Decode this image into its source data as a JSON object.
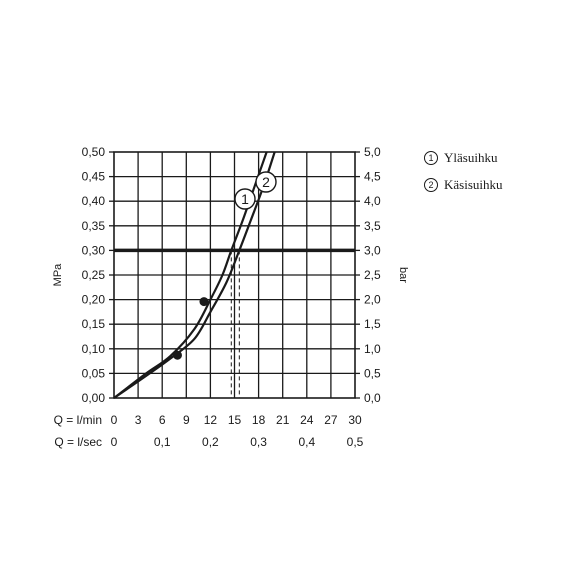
{
  "chart_data": {
    "type": "line",
    "ylabel_left": "MPa",
    "ylabel_right": "bar",
    "ylim": [
      0,
      0.5
    ],
    "xlim_lmin": [
      0,
      30
    ],
    "left_ticks": [
      "0,00",
      "0,05",
      "0,10",
      "0,15",
      "0,20",
      "0,25",
      "0,30",
      "0,35",
      "0,40",
      "0,45",
      "0,50"
    ],
    "right_ticks": [
      "0,0",
      "0,5",
      "1,0",
      "1,5",
      "2,0",
      "2,5",
      "3,0",
      "3,5",
      "4,0",
      "4,5",
      "5,0"
    ],
    "x_row1": {
      "label": "Q = l/min",
      "ticks": [
        {
          "v": 0,
          "t": "0"
        },
        {
          "v": 3,
          "t": "3"
        },
        {
          "v": 6,
          "t": "6"
        },
        {
          "v": 9,
          "t": "9"
        },
        {
          "v": 12,
          "t": "12"
        },
        {
          "v": 15,
          "t": "15"
        },
        {
          "v": 18,
          "t": "18"
        },
        {
          "v": 21,
          "t": "21"
        },
        {
          "v": 24,
          "t": "24"
        },
        {
          "v": 27,
          "t": "27"
        },
        {
          "v": 30,
          "t": "30"
        }
      ]
    },
    "x_row2": {
      "label": "Q = l/sec",
      "ticks": [
        {
          "v": 0,
          "t": "0"
        },
        {
          "v": 6,
          "t": "0,1"
        },
        {
          "v": 12,
          "t": "0,2"
        },
        {
          "v": 18,
          "t": "0,3"
        },
        {
          "v": 24,
          "t": "0,4"
        },
        {
          "v": 30,
          "t": "0,5"
        }
      ]
    },
    "reference_line": {
      "y": 0.3
    },
    "series": [
      {
        "marker": "1",
        "name": "Yläsuihku",
        "points": [
          [
            0,
            0
          ],
          [
            4,
            0.05
          ],
          [
            7,
            0.085
          ],
          [
            10,
            0.14
          ],
          [
            12,
            0.2
          ],
          [
            13.5,
            0.25
          ],
          [
            14.6,
            0.3
          ],
          [
            16,
            0.36
          ],
          [
            17.5,
            0.43
          ],
          [
            19,
            0.5
          ]
        ],
        "dot": [
          11.2,
          0.196
        ],
        "drop_x": 14.6
      },
      {
        "marker": "2",
        "name": "Käsisuihku",
        "points": [
          [
            0,
            0
          ],
          [
            4,
            0.045
          ],
          [
            7,
            0.08
          ],
          [
            10,
            0.12
          ],
          [
            12,
            0.175
          ],
          [
            14,
            0.235
          ],
          [
            15.6,
            0.3
          ],
          [
            17,
            0.36
          ],
          [
            18.6,
            0.43
          ],
          [
            20,
            0.5
          ]
        ],
        "dot": [
          7.9,
          0.087
        ],
        "drop_x": 15.6
      }
    ],
    "grid": true
  },
  "legend": [
    {
      "marker": "1",
      "label": "Yläsuihku"
    },
    {
      "marker": "2",
      "label": "Käsisuihku"
    }
  ]
}
